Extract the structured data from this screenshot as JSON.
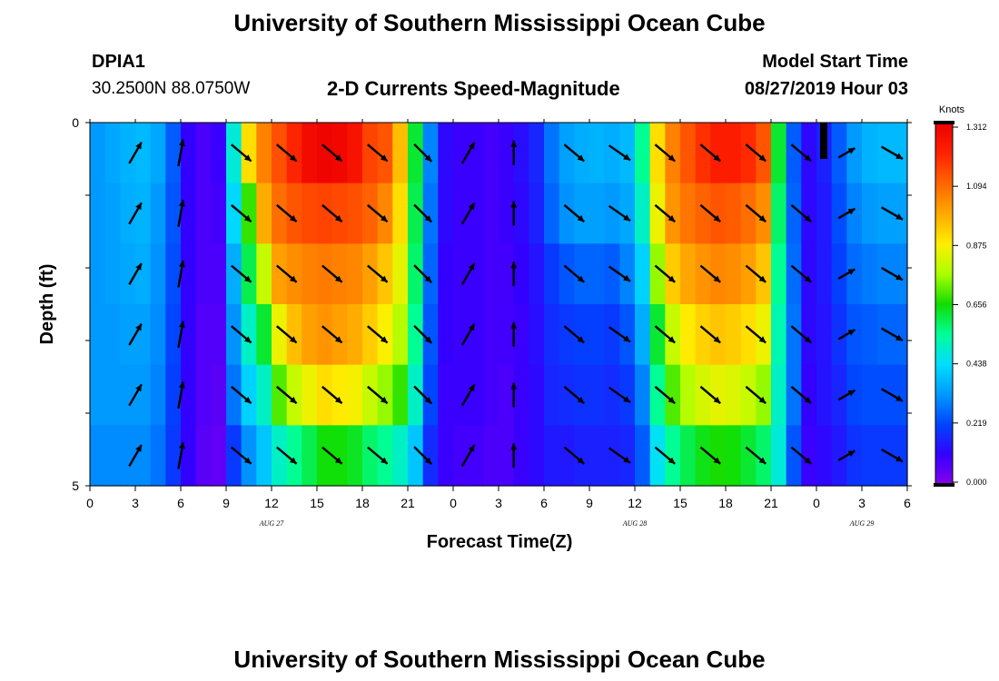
{
  "header": {
    "top_title": "University of Southern Mississippi Ocean Cube",
    "bottom_title": "University of Southern Mississippi Ocean Cube",
    "station": "DPIA1",
    "coordinates": "30.2500N 88.0750W",
    "plot_title": "2-D Currents Speed-Magnitude",
    "model_start_label": "Model Start Time",
    "model_start_value": "08/27/2019 Hour 03"
  },
  "chart_data": {
    "type": "heatmap",
    "title": "2-D Currents Speed-Magnitude",
    "xlabel": "Forecast Time(Z)",
    "ylabel": "Depth (ft)",
    "xlim": [
      0,
      54
    ],
    "ylim": [
      0,
      5
    ],
    "x_tick_labels": [
      "0",
      "3",
      "6",
      "9",
      "12",
      "15",
      "18",
      "21",
      "0",
      "3",
      "6",
      "9",
      "12",
      "15",
      "18",
      "21",
      "0",
      "3",
      "6"
    ],
    "y_tick_labels": [
      "0",
      "5"
    ],
    "date_labels": [
      {
        "text": "AUG 27",
        "hour": 12
      },
      {
        "text": "AUG 28",
        "hour": 36
      },
      {
        "text": "AUG 29",
        "hour": 51
      }
    ],
    "colorbar": {
      "unit": "Knots",
      "tick_labels": [
        "1.312",
        "1.094",
        "0.875",
        "0.656",
        "0.438",
        "0.219",
        "0.000"
      ],
      "min": 0,
      "max": 1.312,
      "colors": [
        "#8800ee",
        "#3300ff",
        "#0044ff",
        "#0099ff",
        "#00ddff",
        "#00ff99",
        "#11dd00",
        "#aaff00",
        "#ffee00",
        "#ffaa00",
        "#ff6600",
        "#ff2200",
        "#ee0000"
      ]
    },
    "column_hours": [
      0,
      1,
      2,
      3,
      4,
      5,
      6,
      7,
      8,
      9,
      10,
      11,
      12,
      13,
      14,
      15,
      16,
      17,
      18,
      19,
      20,
      21,
      22,
      23,
      24,
      25,
      26,
      27,
      28,
      29,
      30,
      31,
      32,
      33,
      34,
      35,
      36,
      37,
      38,
      39,
      40,
      41,
      42,
      43,
      44,
      45,
      46,
      47,
      48,
      49,
      50,
      51,
      52,
      53
    ],
    "speed_profiles_by_hour": [
      [
        0.33,
        0.33,
        0.33,
        0.33,
        0.33,
        0.31
      ],
      [
        0.35,
        0.34,
        0.34,
        0.33,
        0.33,
        0.31
      ],
      [
        0.37,
        0.36,
        0.35,
        0.34,
        0.33,
        0.31
      ],
      [
        0.38,
        0.37,
        0.36,
        0.34,
        0.33,
        0.31
      ],
      [
        0.35,
        0.33,
        0.32,
        0.31,
        0.3,
        0.28
      ],
      [
        0.25,
        0.24,
        0.23,
        0.22,
        0.21,
        0.2
      ],
      [
        0.11,
        0.11,
        0.11,
        0.11,
        0.11,
        0.11
      ],
      [
        0.08,
        0.08,
        0.08,
        0.07,
        0.07,
        0.06
      ],
      [
        0.1,
        0.09,
        0.08,
        0.07,
        0.06,
        0.05
      ],
      [
        0.48,
        0.43,
        0.36,
        0.32,
        0.28,
        0.2
      ],
      [
        0.9,
        0.68,
        0.6,
        0.5,
        0.42,
        0.32
      ],
      [
        1.05,
        0.98,
        0.8,
        0.62,
        0.5,
        0.4
      ],
      [
        1.13,
        1.08,
        1.0,
        0.85,
        0.7,
        0.5
      ],
      [
        1.2,
        1.12,
        1.03,
        0.95,
        0.8,
        0.55
      ],
      [
        1.28,
        1.14,
        1.05,
        1.0,
        0.85,
        0.6
      ],
      [
        1.3,
        1.15,
        1.06,
        1.02,
        0.9,
        0.65
      ],
      [
        1.29,
        1.14,
        1.05,
        1.0,
        0.88,
        0.65
      ],
      [
        1.25,
        1.13,
        1.04,
        0.98,
        0.86,
        0.63
      ],
      [
        1.15,
        1.1,
        1.0,
        0.93,
        0.8,
        0.58
      ],
      [
        1.12,
        1.04,
        0.94,
        0.87,
        0.75,
        0.55
      ],
      [
        0.95,
        0.9,
        0.84,
        0.78,
        0.68,
        0.5
      ],
      [
        0.62,
        0.6,
        0.58,
        0.55,
        0.5,
        0.4
      ],
      [
        0.3,
        0.28,
        0.26,
        0.24,
        0.22,
        0.18
      ],
      [
        0.12,
        0.12,
        0.11,
        0.11,
        0.1,
        0.1
      ],
      [
        0.1,
        0.1,
        0.1,
        0.1,
        0.1,
        0.09
      ],
      [
        0.1,
        0.1,
        0.1,
        0.1,
        0.1,
        0.09
      ],
      [
        0.09,
        0.09,
        0.09,
        0.09,
        0.09,
        0.08
      ],
      [
        0.1,
        0.1,
        0.09,
        0.09,
        0.08,
        0.08
      ],
      [
        0.13,
        0.12,
        0.11,
        0.1,
        0.1,
        0.1
      ],
      [
        0.17,
        0.16,
        0.14,
        0.13,
        0.12,
        0.12
      ],
      [
        0.28,
        0.26,
        0.2,
        0.18,
        0.17,
        0.15
      ],
      [
        0.34,
        0.32,
        0.24,
        0.2,
        0.18,
        0.15
      ],
      [
        0.36,
        0.34,
        0.26,
        0.21,
        0.19,
        0.16
      ],
      [
        0.37,
        0.34,
        0.26,
        0.21,
        0.19,
        0.16
      ],
      [
        0.36,
        0.33,
        0.25,
        0.2,
        0.18,
        0.16
      ],
      [
        0.38,
        0.35,
        0.3,
        0.24,
        0.2,
        0.17
      ],
      [
        0.55,
        0.5,
        0.42,
        0.36,
        0.3,
        0.25
      ],
      [
        0.9,
        0.85,
        0.75,
        0.62,
        0.55,
        0.45
      ],
      [
        1.05,
        1.02,
        0.93,
        0.8,
        0.7,
        0.55
      ],
      [
        1.12,
        1.07,
        0.99,
        0.88,
        0.78,
        0.6
      ],
      [
        1.18,
        1.1,
        1.02,
        0.92,
        0.82,
        0.64
      ],
      [
        1.22,
        1.12,
        1.04,
        0.94,
        0.84,
        0.66
      ],
      [
        1.22,
        1.11,
        1.03,
        0.93,
        0.83,
        0.65
      ],
      [
        1.19,
        1.08,
        1.0,
        0.9,
        0.8,
        0.62
      ],
      [
        1.12,
        1.03,
        0.94,
        0.85,
        0.75,
        0.58
      ],
      [
        0.62,
        0.58,
        0.55,
        0.52,
        0.5,
        0.48
      ],
      [
        0.25,
        0.26,
        0.27,
        0.28,
        0.28,
        0.24
      ],
      [
        0.12,
        0.12,
        0.12,
        0.12,
        0.11,
        0.1
      ],
      [
        0.16,
        0.15,
        0.15,
        0.14,
        0.14,
        0.12
      ],
      [
        0.25,
        0.23,
        0.21,
        0.19,
        0.17,
        0.15
      ],
      [
        0.33,
        0.3,
        0.27,
        0.24,
        0.22,
        0.19
      ],
      [
        0.37,
        0.33,
        0.29,
        0.25,
        0.23,
        0.2
      ],
      [
        0.38,
        0.34,
        0.3,
        0.26,
        0.23,
        0.2
      ],
      [
        0.38,
        0.34,
        0.3,
        0.26,
        0.23,
        0.2
      ]
    ],
    "arrow_hours": [
      3,
      6,
      10,
      13,
      16,
      19,
      22,
      25,
      28,
      32,
      35,
      38,
      41,
      44,
      47,
      50,
      53
    ],
    "arrow_angles_deg": [
      -60,
      -80,
      40,
      40,
      40,
      40,
      45,
      -60,
      -90,
      40,
      35,
      40,
      40,
      40,
      40,
      -30,
      30
    ],
    "arrow_lengths_rel": [
      0.9,
      1.0,
      0.95,
      0.95,
      0.95,
      0.95,
      0.9,
      0.9,
      0.9,
      0.95,
      0.95,
      0.95,
      0.95,
      0.95,
      0.95,
      0.7,
      0.9
    ]
  }
}
